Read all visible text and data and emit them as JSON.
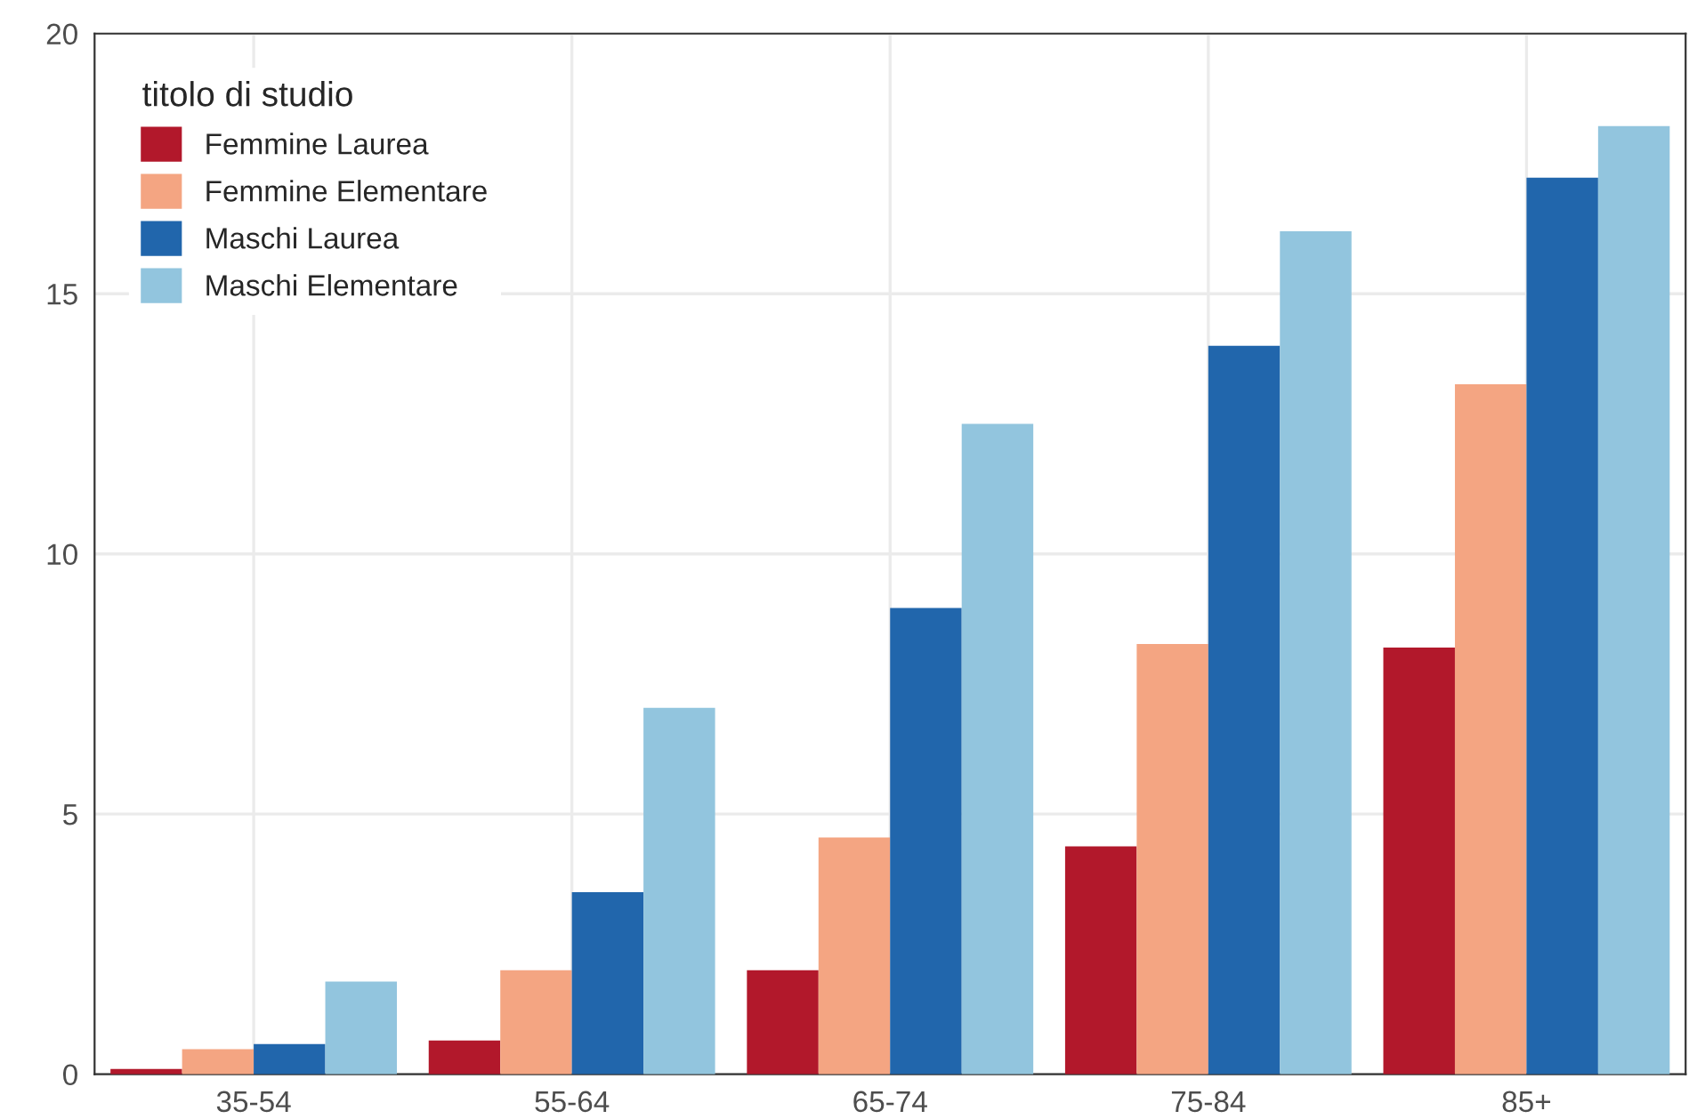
{
  "chart_data": {
    "type": "bar",
    "legend_title": "titolo di studio",
    "categories": [
      "35-54",
      "55-64",
      "65-74",
      "75-84",
      "85+"
    ],
    "series": [
      {
        "name": "Femmine Laurea",
        "color": "#b2182b",
        "values": [
          0.1,
          0.65,
          2.0,
          4.38,
          8.2
        ]
      },
      {
        "name": "Femmine Elementare",
        "color": "#f4a582",
        "values": [
          0.48,
          2.0,
          4.55,
          8.27,
          13.26
        ]
      },
      {
        "name": "Maschi Laurea",
        "color": "#2166ac",
        "values": [
          0.58,
          3.5,
          8.96,
          14.0,
          17.23
        ]
      },
      {
        "name": "Maschi Elementare",
        "color": "#92c5de",
        "values": [
          1.78,
          7.04,
          12.5,
          16.2,
          18.22
        ]
      }
    ],
    "ylim": [
      0,
      20
    ],
    "yticks": [
      0,
      5,
      10,
      15,
      20
    ],
    "grid": true,
    "legend": "top left"
  }
}
